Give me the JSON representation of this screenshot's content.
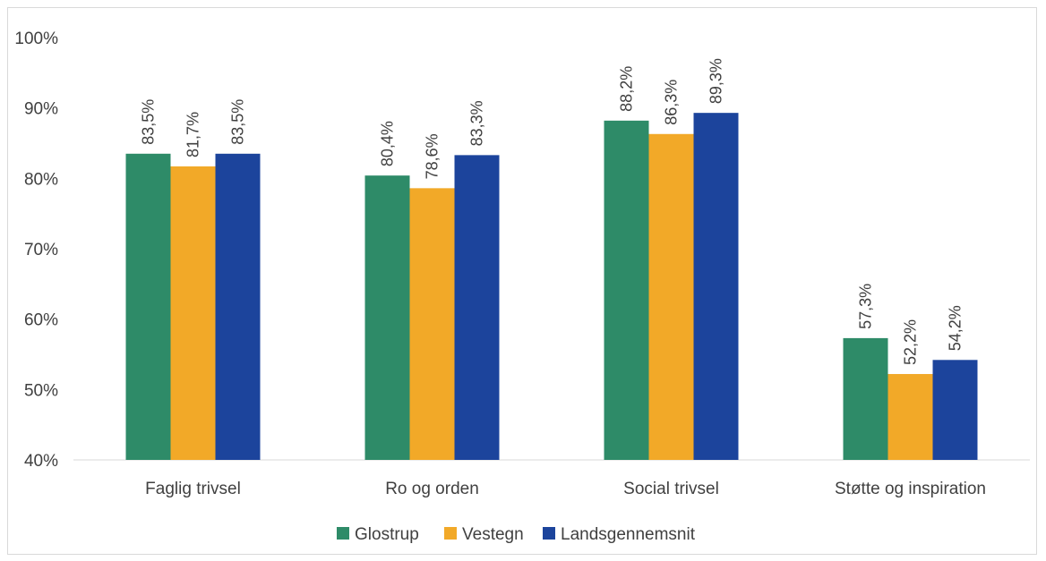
{
  "chart_data": {
    "type": "bar",
    "categories": [
      "Faglig trivsel",
      "Ro og orden",
      "Social trivsel",
      "Støtte og inspiration"
    ],
    "series": [
      {
        "name": "Glostrup",
        "color": "#2e8b68",
        "values": [
          83.5,
          80.4,
          88.2,
          57.3
        ],
        "labels": [
          "83,5%",
          "80,4%",
          "88,2%",
          "57,3%"
        ]
      },
      {
        "name": "Vestegn",
        "color": "#f2a928",
        "values": [
          81.7,
          78.6,
          86.3,
          52.2
        ],
        "labels": [
          "81,7%",
          "78,6%",
          "86,3%",
          "52,2%"
        ]
      },
      {
        "name": "Landsgennemsnit",
        "color": "#1c449c",
        "values": [
          83.5,
          83.3,
          89.3,
          54.2
        ],
        "labels": [
          "83,5%",
          "83,3%",
          "89,3%",
          "54,2%"
        ]
      }
    ],
    "y_ticks": [
      "40%",
      "50%",
      "60%",
      "70%",
      "80%",
      "90%",
      "100%"
    ],
    "ylim": [
      40,
      100
    ],
    "legend_position": "bottom",
    "grid": false,
    "title": "",
    "xlabel": "",
    "ylabel": ""
  }
}
